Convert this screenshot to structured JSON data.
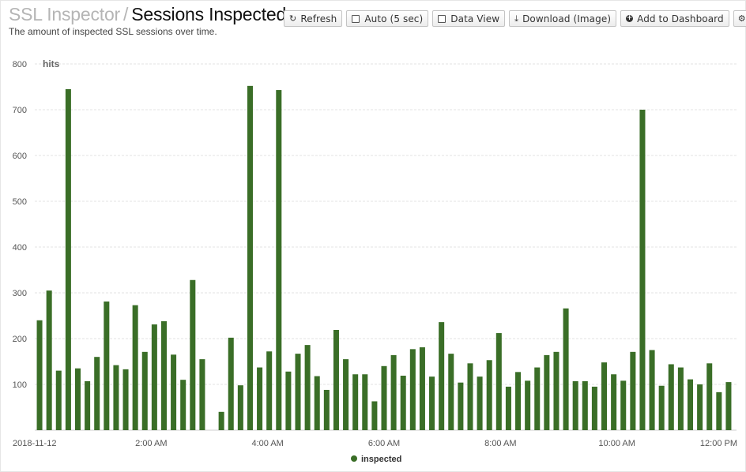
{
  "header": {
    "breadcrumb_parent": "SSL Inspector",
    "separator": "/",
    "title": "Sessions Inspected",
    "subtitle": "The amount of inspected SSL sessions over time."
  },
  "toolbar": {
    "refresh_label": "Refresh",
    "auto_label": "Auto (5 sec)",
    "data_view_label": "Data View",
    "download_label": "Download (Image)",
    "add_dashboard_label": "Add to Dashboard"
  },
  "icons": {
    "refresh": "refresh-icon",
    "auto": "checkbox-icon",
    "data_view": "checkbox-icon",
    "download": "download-icon",
    "add_dashboard": "plus-circle-icon",
    "settings": "gear-icon"
  },
  "chart_data": {
    "type": "bar",
    "title": "",
    "xlabel": "",
    "ylabel": "hits",
    "ylim": [
      0,
      800
    ],
    "yticks": [
      100,
      200,
      300,
      400,
      500,
      600,
      700,
      800
    ],
    "xlim_hours": [
      0,
      12
    ],
    "xticks": [
      {
        "label": "2018-11-12",
        "hour": 0
      },
      {
        "label": "2:00 AM",
        "hour": 2
      },
      {
        "label": "4:00 AM",
        "hour": 4
      },
      {
        "label": "6:00 AM",
        "hour": 6
      },
      {
        "label": "8:00 AM",
        "hour": 8
      },
      {
        "label": "10:00 AM",
        "hour": 10
      },
      {
        "label": "12:00 PM",
        "hour": 12
      }
    ],
    "grid": true,
    "legend_position": "bottom-center",
    "series": [
      {
        "name": "inspected",
        "color": "#3a6e27",
        "values": [
          240,
          305,
          130,
          745,
          135,
          107,
          160,
          281,
          142,
          133,
          273,
          171,
          231,
          238,
          165,
          110,
          328,
          155,
          null,
          40,
          202,
          98,
          752,
          137,
          172,
          743,
          128,
          167,
          186,
          118,
          88,
          219,
          155,
          122,
          122,
          63,
          140,
          164,
          119,
          177,
          181,
          117,
          236,
          167,
          104,
          146,
          117,
          153,
          212,
          95,
          127,
          108,
          137,
          164,
          171,
          266,
          107,
          107,
          95,
          148,
          122,
          108,
          171,
          700,
          175,
          97,
          144,
          137,
          111,
          100,
          146,
          83,
          105
        ]
      }
    ]
  }
}
